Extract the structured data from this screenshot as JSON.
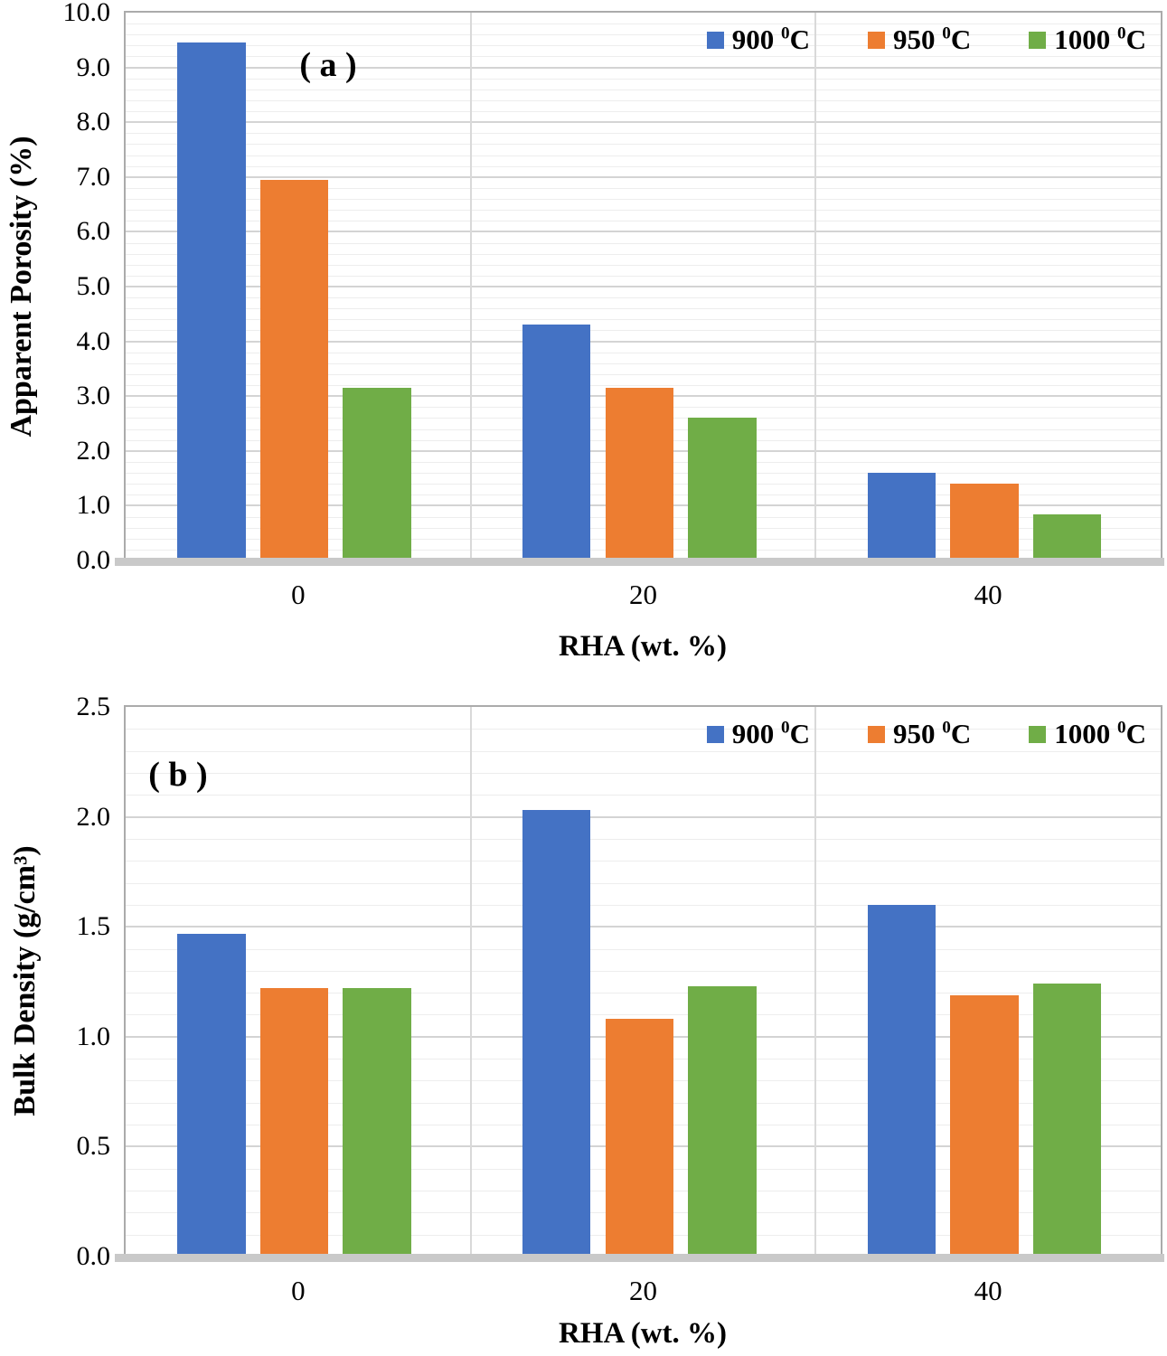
{
  "chart_data": [
    {
      "type": "bar",
      "panel_label": "( a )",
      "categories": [
        "0",
        "20",
        "40"
      ],
      "series": [
        {
          "name": "900 °C",
          "color": "#4472C4",
          "values": [
            9.45,
            4.3,
            1.6
          ],
          "legend": {
            "num": "900",
            "sup": "0",
            "unit": "C"
          }
        },
        {
          "name": "950 °C",
          "color": "#ED7D31",
          "values": [
            6.95,
            3.15,
            1.4
          ],
          "legend": {
            "num": "950",
            "sup": "0",
            "unit": "C"
          }
        },
        {
          "name": "1000 °C",
          "color": "#70AD47",
          "values": [
            3.15,
            2.6,
            0.85
          ],
          "legend": {
            "num": "1000",
            "sup": "0",
            "unit": "C"
          }
        }
      ],
      "xlabel": "RHA (wt. %)",
      "ylabel": "Apparent Porosity (%)",
      "ylim": [
        0,
        10
      ],
      "ytick_values": [
        0,
        1,
        2,
        3,
        4,
        5,
        6,
        7,
        8,
        9,
        10
      ],
      "ytick_labels": [
        "0.0",
        "1.0",
        "2.0",
        "3.0",
        "4.0",
        "5.0",
        "6.0",
        "7.0",
        "8.0",
        "9.0",
        "10.0"
      ],
      "major_grid_step": 1.0,
      "minor_grid_step": 0.2,
      "grid": true,
      "legend_position": "top-right"
    },
    {
      "type": "bar",
      "panel_label": "( b )",
      "categories": [
        "0",
        "20",
        "40"
      ],
      "series": [
        {
          "name": "900 °C",
          "color": "#4472C4",
          "values": [
            1.47,
            2.03,
            1.6
          ],
          "legend": {
            "num": "900",
            "sup": "0",
            "unit": "C"
          }
        },
        {
          "name": "950 °C",
          "color": "#ED7D31",
          "values": [
            1.22,
            1.08,
            1.19
          ],
          "legend": {
            "num": "950",
            "sup": "0",
            "unit": "C"
          }
        },
        {
          "name": "1000 °C",
          "color": "#70AD47",
          "values": [
            1.22,
            1.23,
            1.24
          ],
          "legend": {
            "num": "1000",
            "sup": "0",
            "unit": "C"
          }
        }
      ],
      "xlabel": "RHA (wt. %)",
      "ylabel": "Bulk Density (g/cm³)",
      "ylim": [
        0,
        2.5
      ],
      "ytick_values": [
        0,
        0.5,
        1.0,
        1.5,
        2.0,
        2.5
      ],
      "ytick_labels": [
        "0.0",
        "0.5",
        "1.0",
        "1.5",
        "2.0",
        "2.5"
      ],
      "major_grid_step": 0.5,
      "minor_grid_step": 0.1,
      "grid": true,
      "legend_position": "top-right"
    }
  ],
  "colors": {
    "series_blue": "#4472C4",
    "series_orange": "#ED7D31",
    "series_green": "#70AD47",
    "grid_minor": "#EDEDED",
    "grid_major": "#D4D4D4",
    "plot_border": "#ABABAB",
    "axis_band": "#C9C9C9"
  }
}
